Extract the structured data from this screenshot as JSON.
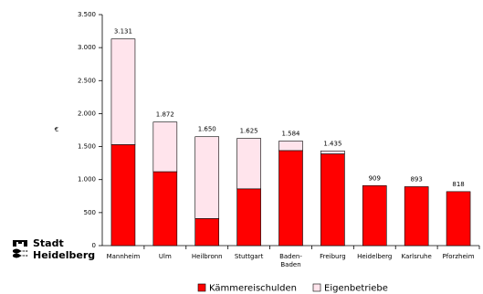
{
  "chart_data": {
    "type": "stacked_bar",
    "ylabel": "€",
    "categories": [
      "Mannheim",
      "Ulm",
      "Heilbronn",
      "Stuttgart",
      "Baden-\nBaden",
      "Freiburg",
      "Heidelberg",
      "Karlsruhe",
      "Pforzheim"
    ],
    "series": [
      {
        "name": "Kämmereischulden",
        "color": "#ff0000",
        "values": [
          1530,
          1120,
          410,
          860,
          1440,
          1390,
          909,
          893,
          818
        ]
      },
      {
        "name": "Eigenbetriebe",
        "color": "#ffe4ec",
        "values": [
          1601,
          752,
          1240,
          765,
          144,
          45,
          0,
          0,
          0
        ]
      }
    ],
    "totals": {
      "values": [
        3131,
        1872,
        1650,
        1625,
        1584,
        1435,
        909,
        893,
        818
      ],
      "value_labels": [
        "3.131",
        "1.872",
        "1.650",
        "1.625",
        "1.584",
        "1.435",
        "909",
        "893",
        "818"
      ]
    },
    "ylim": [
      0,
      3500
    ],
    "yticks": [
      0,
      {
        "value": 500,
        "label": "500"
      },
      {
        "value": 1000,
        "label": "1.000"
      },
      {
        "value": 1500,
        "label": "1.500"
      },
      {
        "value": 2000,
        "label": "2.000"
      },
      {
        "value": 2500,
        "label": "2.500"
      },
      {
        "value": 3000,
        "label": "3.000"
      },
      {
        "value": 3500,
        "label": "3.500"
      }
    ],
    "legend": "bottom"
  },
  "logo": {
    "line1": "Stadt",
    "line2": "Heidelberg"
  }
}
